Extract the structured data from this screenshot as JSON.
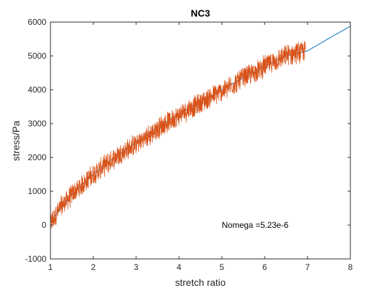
{
  "chart_data": {
    "type": "line",
    "title": "NC3",
    "xlabel": "stretch ratio",
    "ylabel": "stress/Pa",
    "xlim": [
      1,
      8
    ],
    "ylim": [
      -1000,
      6000
    ],
    "xticks": [
      1,
      2,
      3,
      4,
      5,
      6,
      7,
      8
    ],
    "yticks": [
      -1000,
      0,
      1000,
      2000,
      3000,
      4000,
      5000,
      6000
    ],
    "annotation": {
      "text": "Nomega =5.23e-6",
      "x": 5.0,
      "y": 0
    },
    "grid": false,
    "series": [
      {
        "style": "smooth-fit",
        "color": "#0072BD",
        "x": [
          1.0,
          1.5,
          2.0,
          2.5,
          3.0,
          3.5,
          4.0,
          4.5,
          5.0,
          5.5,
          6.0,
          6.5,
          7.0,
          7.5,
          8.0
        ],
        "y": [
          100,
          900,
          1500,
          2000,
          2450,
          2900,
          3280,
          3650,
          4000,
          4350,
          4700,
          5000,
          5150,
          5520,
          5880
        ]
      },
      {
        "style": "noisy-measurement",
        "color": "#D95319",
        "x": [
          1.0,
          1.25,
          1.5,
          1.75,
          2.0,
          2.25,
          2.5,
          2.75,
          3.0,
          3.25,
          3.5,
          3.75,
          4.0,
          4.25,
          4.5,
          4.75,
          5.0,
          5.25,
          5.5,
          5.75,
          6.0,
          6.25,
          6.5,
          6.75,
          6.95
        ],
        "y": [
          50,
          550,
          900,
          1200,
          1500,
          1750,
          2000,
          2200,
          2400,
          2600,
          2850,
          3050,
          3250,
          3450,
          3600,
          3800,
          3950,
          4150,
          4350,
          4500,
          4700,
          4850,
          5000,
          5100,
          5150
        ],
        "noise_amplitude": 350
      }
    ]
  }
}
